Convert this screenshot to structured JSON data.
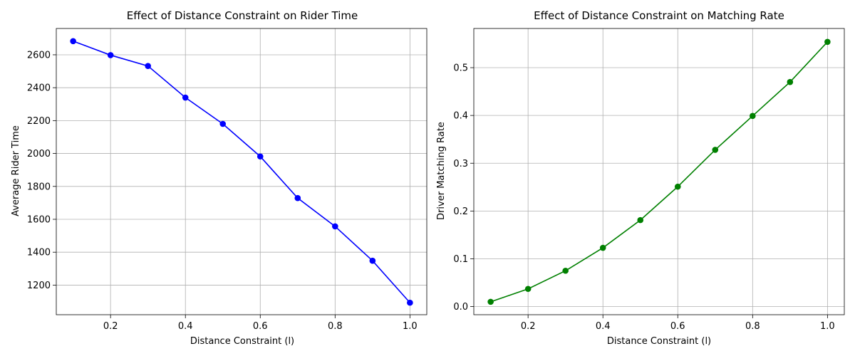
{
  "chart_data": [
    {
      "type": "line",
      "title": "Effect of Distance Constraint on Rider Time",
      "xlabel": "Distance Constraint (l)",
      "ylabel": "Average Rider Time",
      "xlim": [
        0.055,
        1.045
      ],
      "ylim": [
        1020,
        2760
      ],
      "xticks": [
        0.2,
        0.4,
        0.6,
        0.8,
        1.0
      ],
      "xtick_labels": [
        "0.2",
        "0.4",
        "0.6",
        "0.8",
        "1.0"
      ],
      "yticks": [
        1200,
        1400,
        1600,
        1800,
        2000,
        2200,
        2400,
        2600
      ],
      "ytick_labels": [
        "1200",
        "1400",
        "1600",
        "1800",
        "2000",
        "2200",
        "2400",
        "2600"
      ],
      "grid": true,
      "color": "#0000ff",
      "series": [
        {
          "x": [
            0.1,
            0.2,
            0.3,
            0.4,
            0.5,
            0.6,
            0.7,
            0.8,
            0.9,
            1.0
          ],
          "y": [
            2683,
            2598,
            2532,
            2340,
            2180,
            1982,
            1729,
            1557,
            1348,
            1093
          ]
        }
      ]
    },
    {
      "type": "line",
      "title": "Effect of Distance Constraint on Matching Rate",
      "xlabel": "Distance Constraint (l)",
      "ylabel": "Driver Matching Rate",
      "xlim": [
        0.055,
        1.045
      ],
      "ylim": [
        -0.017,
        0.582
      ],
      "xticks": [
        0.2,
        0.4,
        0.6,
        0.8,
        1.0
      ],
      "xtick_labels": [
        "0.2",
        "0.4",
        "0.6",
        "0.8",
        "1.0"
      ],
      "yticks": [
        0.0,
        0.1,
        0.2,
        0.3,
        0.4,
        0.5
      ],
      "ytick_labels": [
        "0.0",
        "0.1",
        "0.2",
        "0.3",
        "0.4",
        "0.5"
      ],
      "grid": true,
      "color": "#008000",
      "series": [
        {
          "x": [
            0.1,
            0.2,
            0.3,
            0.4,
            0.5,
            0.6,
            0.7,
            0.8,
            0.9,
            1.0
          ],
          "y": [
            0.01,
            0.037,
            0.075,
            0.123,
            0.181,
            0.251,
            0.328,
            0.399,
            0.47,
            0.554
          ]
        }
      ]
    }
  ]
}
